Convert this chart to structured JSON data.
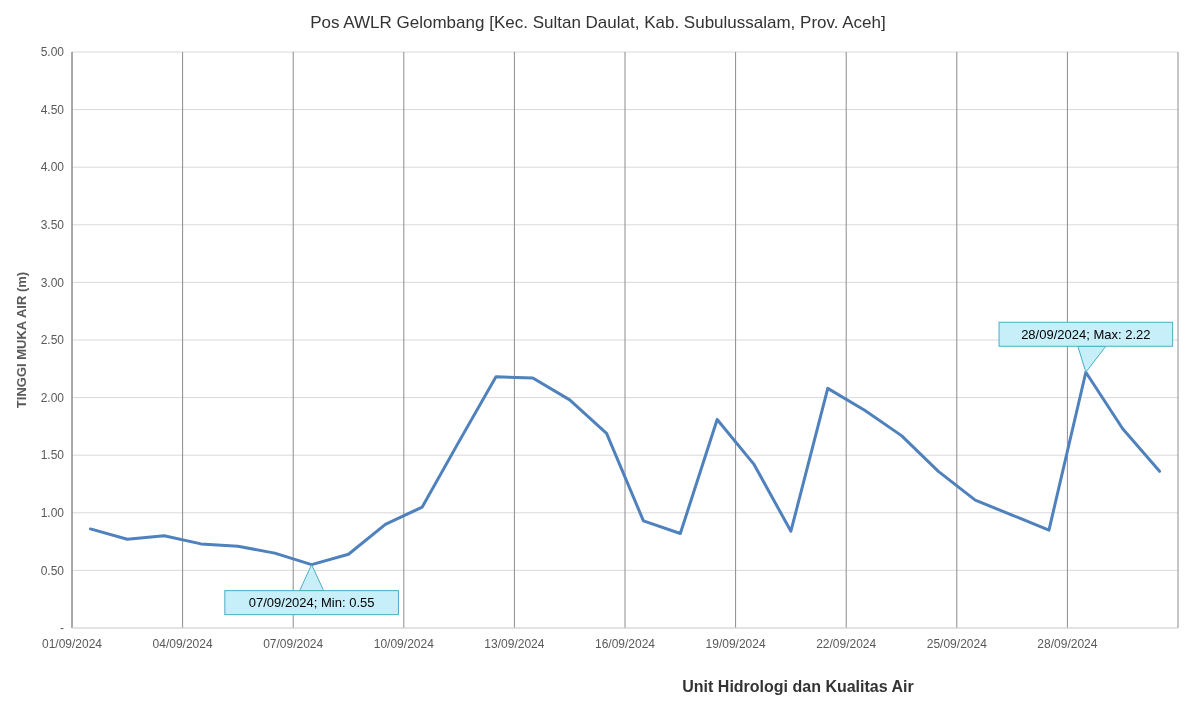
{
  "chart_data": {
    "type": "line",
    "title": "Pos AWLR Gelombang [Kec. Sultan Daulat, Kab. Subulussalam, Prov. Aceh]",
    "ylabel": "TINGGI MUKA AIR (m)",
    "x": [
      "2024-09-01T12:00",
      "2024-09-02T12:00",
      "2024-09-03T12:00",
      "2024-09-04T12:00",
      "2024-09-05T12:00",
      "2024-09-06T12:00",
      "2024-09-07T12:00",
      "2024-09-08T12:00",
      "2024-09-09T12:00",
      "2024-09-10T12:00",
      "2024-09-11T12:00",
      "2024-09-12T12:00",
      "2024-09-13T12:00",
      "2024-09-14T12:00",
      "2024-09-15T12:00",
      "2024-09-16T12:00",
      "2024-09-17T12:00",
      "2024-09-18T12:00",
      "2024-09-19T12:00",
      "2024-09-20T12:00",
      "2024-09-21T12:00",
      "2024-09-22T12:00",
      "2024-09-23T12:00",
      "2024-09-24T12:00",
      "2024-09-25T12:00",
      "2024-09-26T12:00",
      "2024-09-27T12:00",
      "2024-09-28T12:00",
      "2024-09-29T12:00",
      "2024-09-30T12:00"
    ],
    "series": [
      {
        "color": "#4f81bd",
        "values": [
          0.86,
          0.77,
          0.8,
          0.73,
          0.71,
          0.65,
          0.55,
          0.64,
          0.9,
          1.05,
          1.62,
          2.18,
          2.17,
          1.98,
          1.69,
          0.93,
          0.82,
          1.81,
          1.42,
          0.84,
          2.08,
          1.89,
          1.67,
          1.36,
          1.11,
          0.98,
          0.85,
          2.22,
          1.73,
          1.36
        ]
      }
    ],
    "xlim": [
      "2024-09-01",
      "2024-10-01"
    ],
    "xticks": [
      {
        "value": "2024-09-01",
        "label": "01/09/2024"
      },
      {
        "value": "2024-09-04",
        "label": "04/09/2024"
      },
      {
        "value": "2024-09-07",
        "label": "07/09/2024"
      },
      {
        "value": "2024-09-10",
        "label": "10/09/2024"
      },
      {
        "value": "2024-09-13",
        "label": "13/09/2024"
      },
      {
        "value": "2024-09-16",
        "label": "16/09/2024"
      },
      {
        "value": "2024-09-19",
        "label": "19/09/2024"
      },
      {
        "value": "2024-09-22",
        "label": "22/09/2024"
      },
      {
        "value": "2024-09-25",
        "label": "25/09/2024"
      },
      {
        "value": "2024-09-28",
        "label": "28/09/2024"
      },
      {
        "value": "2024-10-01",
        "label": null
      }
    ],
    "ylim": [
      0,
      5
    ],
    "yticks": [
      {
        "value": 0,
        "label": "-"
      },
      {
        "value": 0.5,
        "label": "0.50"
      },
      {
        "value": 1,
        "label": "1.00"
      },
      {
        "value": 1.5,
        "label": "1.50"
      },
      {
        "value": 2,
        "label": "2.00"
      },
      {
        "value": 2.5,
        "label": "2.50"
      },
      {
        "value": 3,
        "label": "3.00"
      },
      {
        "value": 3.5,
        "label": "3.50"
      },
      {
        "value": 4,
        "label": "4.00"
      },
      {
        "value": 4.5,
        "label": "4.50"
      },
      {
        "value": 5,
        "label": "5.00"
      }
    ],
    "grid": true,
    "marker": "none",
    "line_style": "solid",
    "annotations": [
      {
        "text": "07/09/2024; Min: 0.55",
        "x": "2024-09-07T12:00",
        "y": 0.55
      },
      {
        "text": "28/09/2024; Max: 2.22",
        "x": "2024-09-28T12:00",
        "y": 2.22
      },
      "Unit Hidrologi dan Kualitas Air"
    ]
  }
}
